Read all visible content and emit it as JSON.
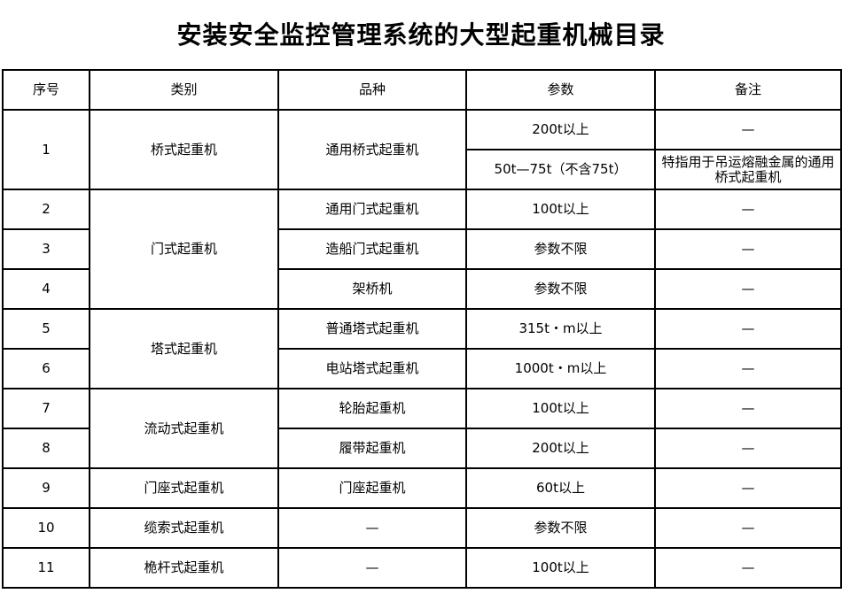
{
  "title": "安装安全监控管理系统的大型起重机械目录",
  "headers": [
    "序号",
    "类别",
    "品种",
    "参数",
    "备注"
  ],
  "rows": [
    {
      "no": "1",
      "category": "桥式起重机",
      "variety": "通用桥式起重机",
      "params": [
        "200t以上",
        "50t—75t（不含75t）"
      ],
      "notes": [
        "—",
        "特指用于吊运熔融金属的通用桥式起重机"
      ]
    },
    {
      "no": "2",
      "category": "门式起重机",
      "variety": "通用门式起重机",
      "params": "100t以上",
      "notes": "—"
    },
    {
      "no": "3",
      "variety": "造船门式起重机",
      "params": "参数不限",
      "notes": "—"
    },
    {
      "no": "4",
      "variety": "架桥机",
      "params": "参数不限",
      "notes": "—"
    },
    {
      "no": "5",
      "category": "塔式起重机",
      "variety": "普通塔式起重机",
      "params": "315t・m以上",
      "notes": "—"
    },
    {
      "no": "6",
      "variety": "电站塔式起重机",
      "params": "1000t・m以上",
      "notes": "—"
    },
    {
      "no": "7",
      "category": "流动式起重机",
      "variety": "轮胎起重机",
      "params": "100t以上",
      "notes": "—"
    },
    {
      "no": "8",
      "variety": "履带起重机",
      "params": "200t以上",
      "notes": "—"
    },
    {
      "no": "9",
      "category": "门座式起重机",
      "variety": "门座起重机",
      "params": "60t以上",
      "notes": "—"
    },
    {
      "no": "10",
      "category": "缆索式起重机",
      "variety": "—",
      "params": "参数不限",
      "notes": "—"
    },
    {
      "no": "11",
      "category": "桅杆式起重机",
      "variety": "—",
      "params": "100t以上",
      "notes": "—"
    }
  ]
}
